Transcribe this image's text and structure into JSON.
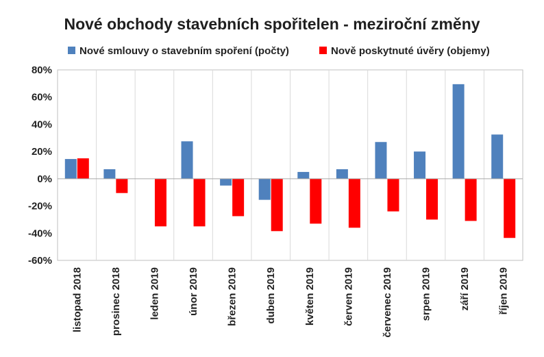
{
  "chart_data": {
    "type": "bar",
    "title": "Nové obchody stavebních spořitelen - meziroční změny",
    "categories": [
      "listopad 2018",
      "prosinec 2018",
      "leden 2019",
      "únor 2019",
      "březen 2019",
      "duben 2019",
      "květen 2019",
      "červen 2019",
      "červenec 2019",
      "srpen 2019",
      "září 2019",
      "říjen 2019"
    ],
    "series": [
      {
        "name": "Nové smlouvy o stavebním spoření (počty)",
        "color": "#4f81bd",
        "values": [
          14.5,
          7,
          0,
          27.5,
          -5,
          -15.5,
          5,
          7,
          27,
          20,
          69.5,
          32.5
        ]
      },
      {
        "name": "Nově poskytnuté úvěry (objemy)",
        "color": "#ff0000",
        "values": [
          15,
          -10.5,
          -35,
          -35,
          -27.5,
          -38.5,
          -33,
          -36,
          -24,
          -30,
          -31,
          -43.5
        ]
      }
    ],
    "ylim": [
      -60,
      80
    ],
    "yticks": [
      80,
      60,
      40,
      20,
      0,
      -20,
      -40,
      -60
    ],
    "ytick_labels": [
      "80%",
      "60%",
      "40%",
      "20%",
      "0%",
      "-20%",
      "-40%",
      "-60%"
    ],
    "legend_position": "top",
    "grid": "vertical-category-separators"
  }
}
